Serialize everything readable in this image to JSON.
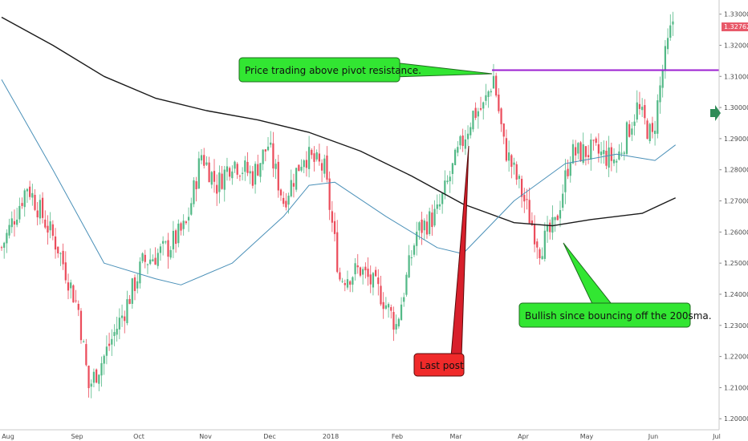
{
  "chart_data": {
    "type": "candlestick",
    "y_axis": {
      "ticks": [
        "1.20000",
        "1.21000",
        "1.22000",
        "1.23000",
        "1.24000",
        "1.25000",
        "1.26000",
        "1.27000",
        "1.28000",
        "1.29000",
        "1.30000",
        "1.31000",
        "1.32000",
        "1.33000"
      ],
      "range": [
        1.198,
        1.333
      ]
    },
    "x_axis": {
      "ticks": [
        "Aug",
        "Sep",
        "Oct",
        "Nov",
        "Dec",
        "2018",
        "Feb",
        "Mar",
        "Apr",
        "May",
        "Jun",
        "Jul"
      ]
    },
    "last_price_label": "1.32762",
    "last_price": 1.32762,
    "pivot_resistance": 1.312,
    "annotations": [
      {
        "text": "Price trading above pivot resistance.",
        "color": "#32e632",
        "points_to_month": "Mar"
      },
      {
        "text": "Last post",
        "color": "#f02a2a",
        "points_to_month": "Mar"
      },
      {
        "text": "Bullish since bouncing off the 200sma.",
        "color": "#32e632",
        "points_to_month": "Apr"
      }
    ],
    "series": [
      {
        "kind": "moving-average-200",
        "color": "#1a1a1a",
        "approx": [
          [
            0,
            1.329
          ],
          [
            20,
            1.32
          ],
          [
            40,
            1.31
          ],
          [
            60,
            1.303
          ],
          [
            80,
            1.299
          ],
          [
            100,
            1.296
          ],
          [
            120,
            1.292
          ],
          [
            140,
            1.286
          ],
          [
            160,
            1.278
          ],
          [
            180,
            1.269
          ],
          [
            200,
            1.263
          ],
          [
            215,
            1.262
          ],
          [
            230,
            1.264
          ],
          [
            250,
            1.266
          ],
          [
            263,
            1.271
          ]
        ]
      },
      {
        "kind": "moving-average-50",
        "color": "#4a90b8",
        "approx": [
          [
            0,
            1.309
          ],
          [
            20,
            1.28
          ],
          [
            40,
            1.25
          ],
          [
            60,
            1.245
          ],
          [
            70,
            1.243
          ],
          [
            90,
            1.25
          ],
          [
            110,
            1.265
          ],
          [
            120,
            1.275
          ],
          [
            130,
            1.276
          ],
          [
            150,
            1.265
          ],
          [
            170,
            1.255
          ],
          [
            180,
            1.253
          ],
          [
            200,
            1.27
          ],
          [
            220,
            1.282
          ],
          [
            240,
            1.285
          ],
          [
            255,
            1.283
          ],
          [
            263,
            1.288
          ]
        ]
      },
      {
        "kind": "candles",
        "up_color": "#53b987",
        "down_color": "#eb4d5c",
        "close_path": [
          [
            0,
            1.255
          ],
          [
            10,
            1.275
          ],
          [
            22,
            1.255
          ],
          [
            30,
            1.235
          ],
          [
            34,
            1.21
          ],
          [
            40,
            1.22
          ],
          [
            48,
            1.235
          ],
          [
            55,
            1.25
          ],
          [
            65,
            1.255
          ],
          [
            72,
            1.262
          ],
          [
            78,
            1.285
          ],
          [
            84,
            1.275
          ],
          [
            90,
            1.283
          ],
          [
            98,
            1.278
          ],
          [
            104,
            1.288
          ],
          [
            110,
            1.27
          ],
          [
            118,
            1.285
          ],
          [
            126,
            1.28
          ],
          [
            132,
            1.245
          ],
          [
            140,
            1.248
          ],
          [
            148,
            1.24
          ],
          [
            154,
            1.23
          ],
          [
            162,
            1.26
          ],
          [
            170,
            1.266
          ],
          [
            178,
            1.285
          ],
          [
            184,
            1.298
          ],
          [
            188,
            1.3
          ],
          [
            192,
            1.31
          ],
          [
            196,
            1.288
          ],
          [
            202,
            1.275
          ],
          [
            210,
            1.255
          ],
          [
            216,
            1.262
          ],
          [
            222,
            1.285
          ],
          [
            230,
            1.286
          ],
          [
            240,
            1.283
          ],
          [
            248,
            1.3
          ],
          [
            254,
            1.29
          ],
          [
            258,
            1.312
          ],
          [
            262,
            1.328
          ]
        ]
      }
    ]
  }
}
